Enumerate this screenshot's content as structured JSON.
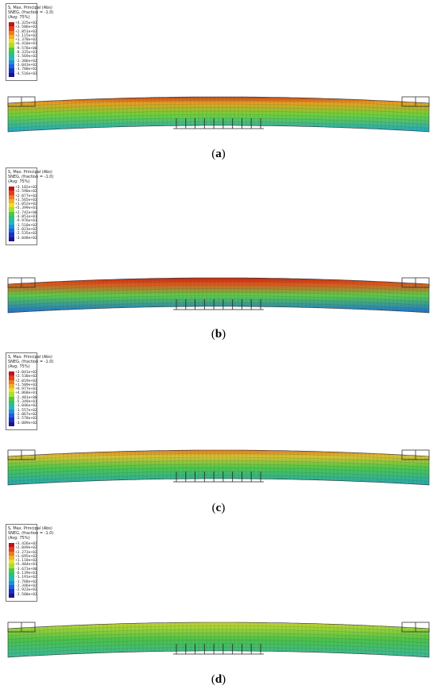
{
  "legend_title_lines": [
    "S, Max. Principal (Abs)",
    "SNEG, (fraction = -1.0)",
    "(Avg: 75%)"
  ],
  "panels": [
    {
      "label": "a",
      "legend_values": [
        "+4.325e+02",
        "+3.586e+02",
        "+2.851e+02",
        "+2.115e+02",
        "+1.378e+02",
        "+6.410e+01",
        "-9.578e+00",
        "-8.325e+01",
        "-1.569e+02",
        "-2.306e+02",
        "-3.043e+02",
        "-3.780e+02",
        "-4.516e+02"
      ],
      "top_color": "#e8a020",
      "mid_color": "#6fd23a",
      "bottom_color": "#1fa6c8",
      "hot_color": "#c8421a"
    },
    {
      "label": "b",
      "legend_values": [
        "+3.102e+02",
        "+2.590e+02",
        "+2.077e+02",
        "+1.565e+02",
        "+1.052e+02",
        "+5.399e+01",
        "+2.742e+00",
        "-4.851e+01",
        "-9.976e+01",
        "-1.510e+02",
        "-2.023e+02",
        "-2.535e+02",
        "-3.048e+02"
      ],
      "top_color": "#e0561c",
      "mid_color": "#5ccd4a",
      "bottom_color": "#1c6fd8",
      "hot_color": "#c22a12"
    },
    {
      "label": "c",
      "legend_values": [
        "+3.041e+02",
        "+2.530e+02",
        "+2.019e+02",
        "+1.509e+02",
        "+9.977e+01",
        "+4.868e+01",
        "-2.401e+00",
        "-5.349e+01",
        "-1.046e+02",
        "-1.557e+02",
        "-2.067e+02",
        "-2.578e+02",
        "-3.089e+02"
      ],
      "top_color": "#d8c232",
      "mid_color": "#4fc84a",
      "bottom_color": "#25a6b8",
      "hot_color": "#e07820"
    },
    {
      "label": "d",
      "legend_values": [
        "+3.426e+02",
        "+2.849e+02",
        "+2.273e+02",
        "+1.695e+02",
        "+1.118e+02",
        "+5.404e+01",
        "-3.673e+00",
        "-6.139e+01",
        "-1.191e+02",
        "-1.768e+02",
        "-2.346e+02",
        "-2.923e+02",
        "-3.500e+02"
      ],
      "top_color": "#9cd23a",
      "mid_color": "#4cc24a",
      "bottom_color": "#3ab8a0",
      "hot_color": "#c8d030"
    }
  ],
  "legend_colors": [
    "#c0121a",
    "#e0401c",
    "#f07a1c",
    "#f0b022",
    "#e8e026",
    "#a8e02a",
    "#4ec93c",
    "#2cc07a",
    "#22b8b8",
    "#1e90d8",
    "#1e5fe0",
    "#1c30c8",
    "#1a148c"
  ]
}
